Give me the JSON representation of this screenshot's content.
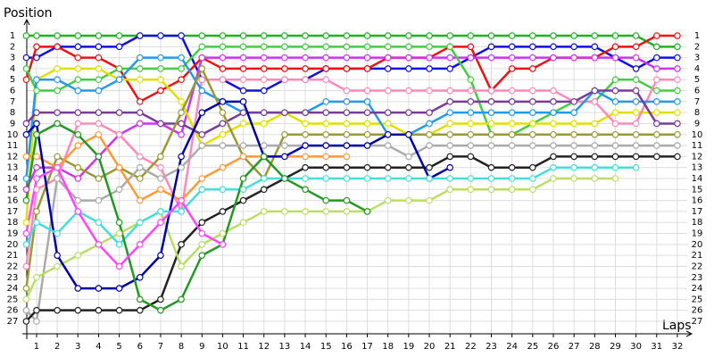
{
  "chart_data": {
    "type": "line",
    "y_axis_label": "Position",
    "x_axis_label": "Laps",
    "inverted_y": true,
    "grid": true,
    "marker": "circle",
    "xlim": [
      0.5,
      33.5
    ],
    "ylim": [
      0,
      28
    ],
    "xticks": [
      1,
      2,
      3,
      4,
      5,
      6,
      7,
      8,
      9,
      10,
      11,
      12,
      13,
      14,
      15,
      16,
      17,
      18,
      19,
      20,
      21,
      22,
      23,
      24,
      25,
      26,
      27,
      28,
      29,
      30,
      31,
      32
    ],
    "yticks": [
      1,
      2,
      3,
      4,
      5,
      6,
      7,
      8,
      9,
      10,
      11,
      12,
      13,
      14,
      15,
      16,
      17,
      18,
      19,
      20,
      21,
      22,
      23,
      24,
      25,
      26,
      27
    ],
    "x": [
      0.5,
      1,
      2,
      3,
      4,
      5,
      6,
      7,
      8,
      9,
      10,
      11,
      12,
      13,
      14,
      15,
      16,
      17,
      18,
      19,
      20,
      21,
      22,
      23,
      24,
      25,
      26,
      27,
      28,
      29,
      30,
      31,
      32
    ],
    "series": [
      {
        "color": "#22b022",
        "values": [
          1,
          1,
          1,
          1,
          1,
          1,
          1,
          1,
          1,
          1,
          1,
          1,
          1,
          1,
          1,
          1,
          1,
          1,
          1,
          1,
          1,
          1,
          1,
          1,
          1,
          1,
          1,
          1,
          1,
          1,
          1,
          2,
          2
        ]
      },
      {
        "color": "#1010e0",
        "values": [
          3,
          3,
          2,
          2,
          2,
          2,
          1,
          1,
          1,
          5,
          5,
          6,
          6,
          5,
          5,
          4,
          4,
          4,
          4,
          4,
          4,
          4,
          3,
          2,
          2,
          2,
          2,
          2,
          2,
          3,
          4,
          3,
          3
        ]
      },
      {
        "color": "#ee1111",
        "values": [
          5,
          2,
          2,
          3,
          3,
          4,
          7,
          6,
          5,
          3,
          4,
          4,
          4,
          4,
          4,
          4,
          4,
          4,
          3,
          3,
          3,
          2,
          2,
          6,
          4,
          4,
          3,
          3,
          3,
          2,
          2,
          1,
          1
        ]
      },
      {
        "color": "#cc33ee",
        "values": [
          15,
          13,
          13,
          14,
          12,
          10,
          9,
          9,
          10,
          3,
          3,
          3,
          3,
          3,
          3,
          3,
          3,
          3,
          3,
          3,
          3,
          3,
          3,
          3,
          3,
          3,
          3,
          3,
          3,
          3,
          3,
          4,
          4
        ]
      },
      {
        "color": "#44cc44",
        "values": [
          4,
          6,
          6,
          5,
          5,
          4,
          4,
          4,
          4,
          2,
          2,
          2,
          2,
          2,
          2,
          2,
          2,
          2,
          2,
          2,
          2,
          2,
          5,
          10,
          10,
          9,
          8,
          7,
          7,
          5,
          5,
          6,
          6
        ]
      },
      {
        "color": "#e0e000",
        "values": [
          18,
          5,
          4,
          4,
          4,
          5,
          5,
          5,
          7,
          11,
          10,
          9,
          9,
          8,
          9,
          9,
          9,
          9,
          9,
          10,
          10,
          9,
          9,
          9,
          9,
          9,
          9,
          9,
          9,
          8,
          8,
          8,
          8
        ]
      },
      {
        "color": "#ff88bb",
        "values": [
          22,
          15,
          14,
          9,
          9,
          10,
          12,
          13,
          17,
          5,
          5,
          5,
          5,
          5,
          5,
          5,
          6,
          6,
          6,
          6,
          6,
          6,
          6,
          6,
          6,
          6,
          6,
          7,
          7,
          9,
          9,
          5,
          5
        ]
      },
      {
        "color": "#2299ee",
        "values": [
          14,
          5,
          5,
          6,
          6,
          5,
          3,
          3,
          3,
          6,
          7,
          8,
          8,
          8,
          8,
          7,
          7,
          7,
          10,
          10,
          9,
          8,
          8,
          8,
          8,
          8,
          8,
          8,
          6,
          7,
          7,
          7,
          7
        ]
      },
      {
        "color": "#7a3a9a",
        "values": [
          9,
          8,
          8,
          8,
          8,
          8,
          8,
          9,
          9,
          10,
          9,
          8,
          8,
          8,
          8,
          8,
          8,
          8,
          8,
          8,
          8,
          7,
          7,
          7,
          7,
          7,
          7,
          7,
          6,
          6,
          6,
          9,
          9
        ]
      },
      {
        "color": "#999933",
        "values": [
          24,
          17,
          12,
          13,
          14,
          13,
          14,
          12,
          8,
          4,
          8,
          12,
          14,
          10,
          10,
          10,
          10,
          10,
          10,
          10,
          10,
          10,
          10,
          10,
          10,
          10,
          10,
          10,
          10,
          10,
          10,
          10,
          10
        ]
      },
      {
        "color": "#aaaaaa",
        "values": [
          26,
          27,
          14,
          16,
          16,
          15,
          13,
          14,
          13,
          11,
          11,
          11,
          11,
          11,
          11,
          11,
          11,
          11,
          11,
          12,
          11,
          11,
          11,
          11,
          11,
          11,
          11,
          11,
          11,
          11,
          11,
          11,
          11
        ]
      },
      {
        "color": "#222222",
        "values": [
          27,
          26,
          26,
          26,
          26,
          26,
          26,
          25,
          20,
          18,
          17,
          16,
          15,
          14,
          13,
          13,
          13,
          13,
          13,
          13,
          13,
          12,
          12,
          13,
          13,
          13,
          12,
          12,
          12,
          12,
          12,
          12,
          12
        ]
      },
      {
        "color": "#ff9933",
        "values": [
          12,
          12,
          13,
          11,
          10,
          13,
          16,
          15,
          16,
          14,
          13,
          12,
          12,
          12,
          12,
          12,
          12,
          null,
          null,
          null,
          null,
          null,
          null,
          null,
          null,
          null,
          null,
          null,
          null,
          null,
          null,
          null,
          null
        ]
      },
      {
        "color": "#bbdd66",
        "values": [
          25,
          23,
          22,
          21,
          20,
          19,
          18,
          17,
          22,
          20,
          19,
          18,
          17,
          17,
          17,
          17,
          17,
          17,
          16,
          16,
          16,
          15,
          15,
          15,
          15,
          15,
          14,
          14,
          14,
          14,
          null,
          null,
          null
        ]
      },
      {
        "color": "#0000aa",
        "values": [
          10,
          9,
          21,
          24,
          24,
          24,
          23,
          21,
          12,
          8,
          7,
          7,
          12,
          12,
          11,
          11,
          11,
          11,
          10,
          10,
          14,
          13,
          null,
          null,
          null,
          null,
          null,
          null,
          null,
          null,
          null,
          null,
          null
        ]
      },
      {
        "color": "#44dddd",
        "values": [
          20,
          18,
          19,
          17,
          18,
          20,
          18,
          17,
          17,
          15,
          15,
          15,
          14,
          14,
          14,
          14,
          14,
          14,
          14,
          14,
          14,
          14,
          14,
          14,
          14,
          14,
          13,
          13,
          13,
          13,
          13,
          null,
          null
        ]
      },
      {
        "color": "#229922",
        "values": [
          16,
          10,
          9,
          10,
          12,
          18,
          25,
          26,
          25,
          21,
          20,
          14,
          12,
          14,
          15,
          16,
          16,
          17,
          null,
          null,
          null,
          null,
          null,
          null,
          null,
          null,
          null,
          null,
          null,
          null,
          null,
          null,
          null
        ]
      },
      {
        "color": "#ff44ff",
        "values": [
          19,
          14,
          13,
          17,
          20,
          22,
          20,
          18,
          16,
          19,
          20,
          null,
          null,
          null,
          null,
          null,
          null,
          null,
          null,
          null,
          null,
          null,
          null,
          null,
          null,
          null,
          null,
          null,
          null,
          null,
          null,
          null,
          null
        ]
      }
    ]
  }
}
